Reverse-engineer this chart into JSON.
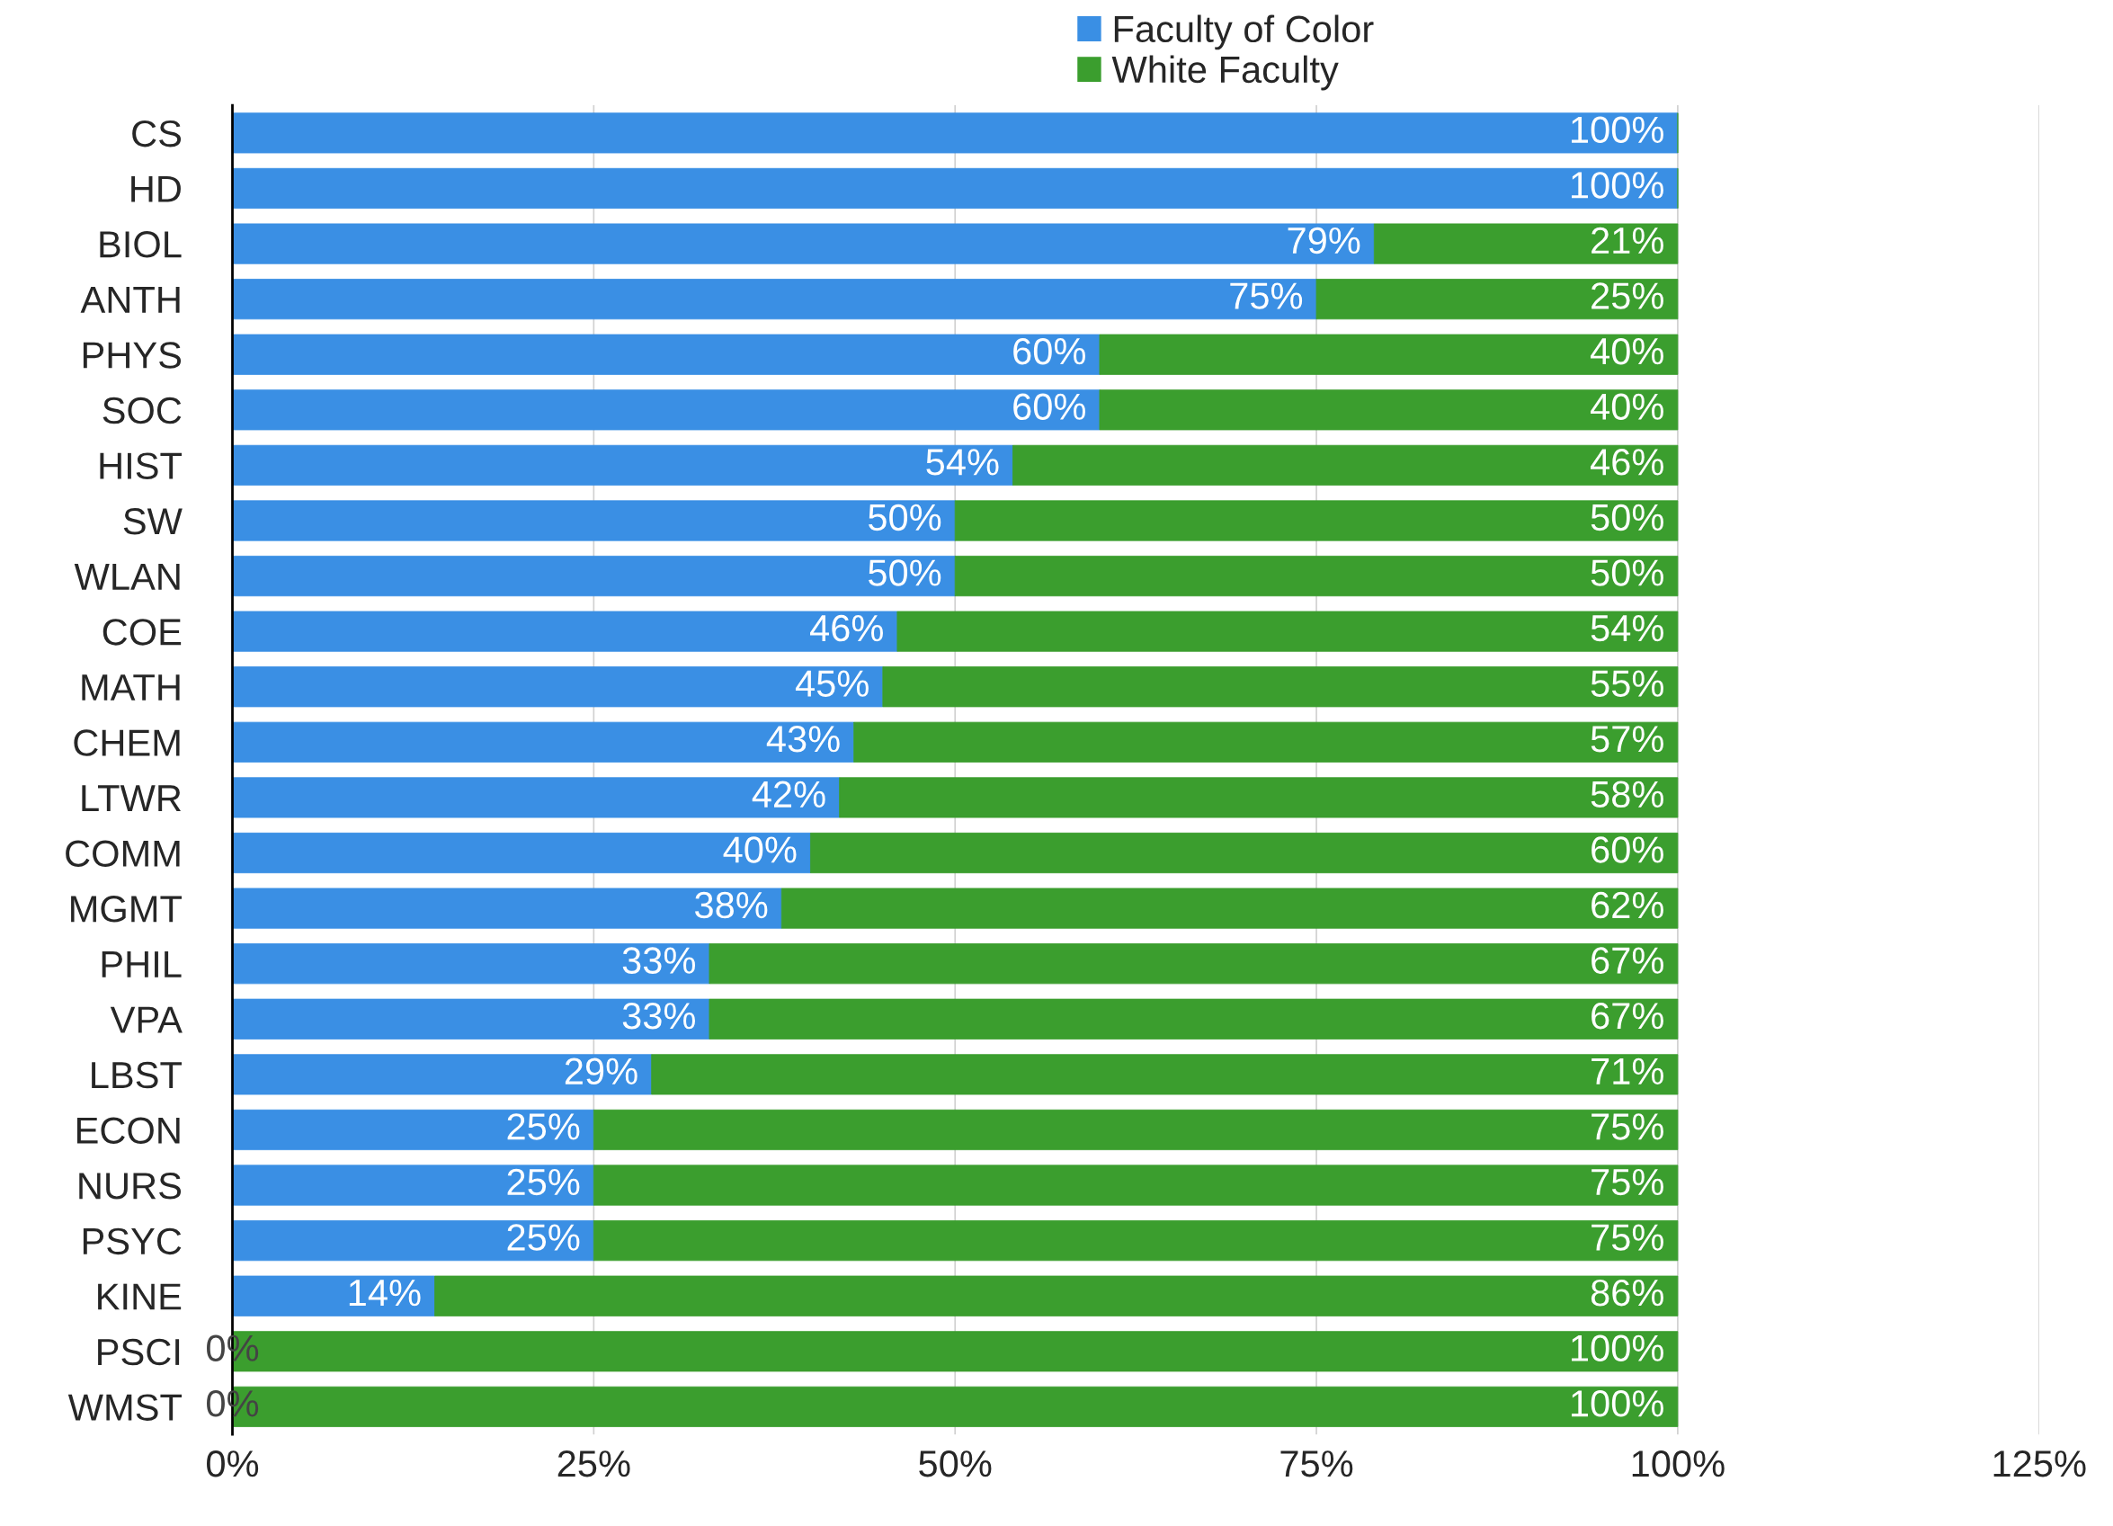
{
  "chart_data": {
    "type": "bar",
    "orientation": "horizontal",
    "stacked": true,
    "categories": [
      "CS",
      "HD",
      "BIOL",
      "ANTH",
      "PHYS",
      "SOC",
      "HIST",
      "SW",
      "WLAN",
      "COE",
      "MATH",
      "CHEM",
      "LTWR",
      "COMM",
      "MGMT",
      "PHIL",
      "VPA",
      "LBST",
      "ECON",
      "NURS",
      "PSYC",
      "KINE",
      "PSCI",
      "WMST"
    ],
    "series": [
      {
        "name": "Faculty of Color",
        "color": "#3a8fe4",
        "values": [
          100,
          100,
          79,
          75,
          60,
          60,
          54,
          50,
          50,
          46,
          45,
          43,
          42,
          40,
          38,
          33,
          33,
          29,
          25,
          25,
          25,
          14,
          0,
          0
        ],
        "value_labels": [
          "100%",
          "100%",
          "79%",
          "75%",
          "60%",
          "60%",
          "54%",
          "50%",
          "50%",
          "46%",
          "45%",
          "43%",
          "42%",
          "40%",
          "38%",
          "33%",
          "33%",
          "29%",
          "25%",
          "25%",
          "25%",
          "14%",
          "0%",
          "0%"
        ]
      },
      {
        "name": "White Faculty",
        "color": "#3b9e2e",
        "values": [
          0,
          0,
          21,
          25,
          40,
          40,
          46,
          50,
          50,
          54,
          55,
          57,
          58,
          60,
          62,
          67,
          67,
          71,
          75,
          75,
          75,
          86,
          100,
          100
        ],
        "value_labels": [
          null,
          null,
          "21%",
          "25%",
          "40%",
          "40%",
          "46%",
          "50%",
          "50%",
          "54%",
          "55%",
          "57%",
          "58%",
          "60%",
          "62%",
          "67%",
          "67%",
          "71%",
          "75%",
          "75%",
          "75%",
          "86%",
          "100%",
          "100%"
        ]
      }
    ],
    "xlim": [
      0,
      125
    ],
    "xticks": [
      {
        "value": 0,
        "label": "0%"
      },
      {
        "value": 25,
        "label": "25%"
      },
      {
        "value": 50,
        "label": "50%"
      },
      {
        "value": 75,
        "label": "75%"
      },
      {
        "value": 100,
        "label": "100%"
      },
      {
        "value": 125,
        "label": "125%"
      }
    ],
    "grid": "x",
    "legend": "top"
  }
}
